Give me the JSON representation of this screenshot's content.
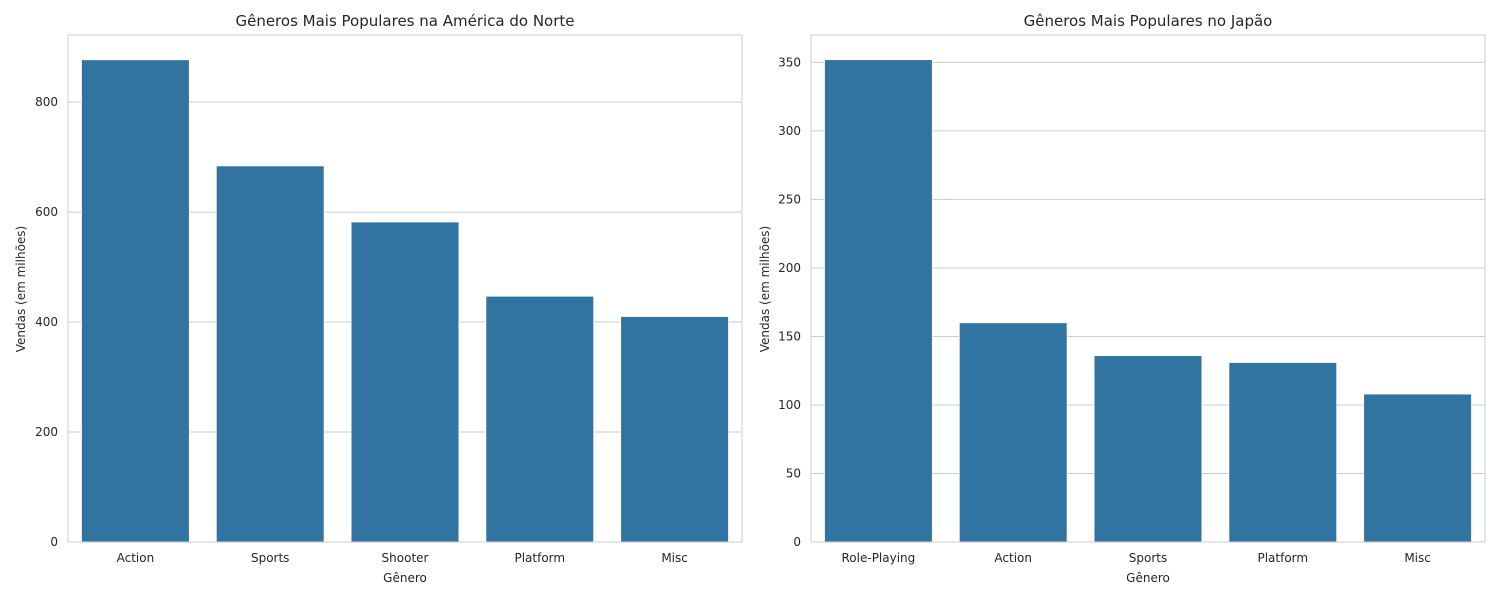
{
  "chart_data": [
    {
      "type": "bar",
      "title": "Gêneros Mais Populares na América do Norte",
      "xlabel": "Gênero",
      "ylabel": "Vendas (em milhões)",
      "categories": [
        "Action",
        "Sports",
        "Shooter",
        "Platform",
        "Misc"
      ],
      "values": [
        877,
        684,
        582,
        447,
        410
      ],
      "ylim": [
        0,
        922
      ],
      "yticks": [
        0,
        200,
        400,
        600,
        800
      ],
      "grid": true,
      "bar_color": "#3274a1"
    },
    {
      "type": "bar",
      "title": "Gêneros Mais Populares no Japão",
      "xlabel": "Gênero",
      "ylabel": "Vendas (em milhões)",
      "categories": [
        "Role-Playing",
        "Action",
        "Sports",
        "Platform",
        "Misc"
      ],
      "values": [
        352,
        160,
        136,
        131,
        108
      ],
      "ylim": [
        0,
        370
      ],
      "yticks": [
        0,
        50,
        100,
        150,
        200,
        250,
        300,
        350
      ],
      "grid": true,
      "bar_color": "#3274a1"
    }
  ]
}
